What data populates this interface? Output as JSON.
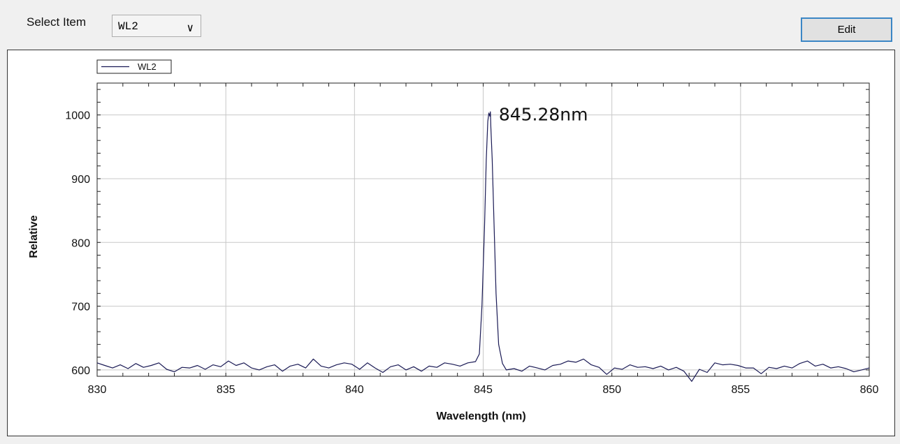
{
  "toolbar": {
    "select_label": "Select Item",
    "select_value": "WL2",
    "select_arrow": "∨",
    "edit_label": "Edit"
  },
  "colors": {
    "series": "#1a1a55",
    "grid": "#c8c8c8",
    "accent": "#3b86c5"
  },
  "chart_data": {
    "type": "line",
    "title": "",
    "xlabel": "Wavelength (nm)",
    "ylabel": "Relative",
    "xlim": [
      830,
      860
    ],
    "ylim": [
      590,
      1050
    ],
    "xticks": [
      830,
      835,
      840,
      845,
      850,
      855,
      860
    ],
    "yticks": [
      600,
      700,
      800,
      900,
      1000
    ],
    "grid": true,
    "legend": "top-left",
    "annotation": {
      "text": "845.28nm",
      "x": 845.28,
      "y": 1000
    },
    "series": [
      {
        "name": "WL2",
        "x": [
          830.0,
          830.3,
          830.6,
          830.9,
          831.2,
          831.5,
          831.8,
          832.1,
          832.4,
          832.7,
          833.0,
          833.3,
          833.6,
          833.9,
          834.2,
          834.5,
          834.8,
          835.1,
          835.4,
          835.7,
          836.0,
          836.3,
          836.6,
          836.9,
          837.2,
          837.5,
          837.8,
          838.1,
          838.4,
          838.7,
          839.0,
          839.3,
          839.6,
          839.9,
          840.2,
          840.5,
          840.8,
          841.1,
          841.4,
          841.7,
          842.0,
          842.3,
          842.6,
          842.9,
          843.2,
          843.5,
          843.8,
          844.1,
          844.4,
          844.7,
          844.85,
          844.95,
          845.05,
          845.12,
          845.18,
          845.22,
          845.26,
          845.28,
          845.3,
          845.35,
          845.42,
          845.5,
          845.6,
          845.75,
          845.9,
          846.2,
          846.5,
          846.8,
          847.1,
          847.4,
          847.7,
          848.0,
          848.3,
          848.6,
          848.9,
          849.2,
          849.5,
          849.8,
          850.1,
          850.4,
          850.7,
          851.0,
          851.3,
          851.6,
          851.9,
          852.2,
          852.5,
          852.8,
          853.1,
          853.4,
          853.7,
          854.0,
          854.3,
          854.6,
          854.9,
          855.2,
          855.5,
          855.8,
          856.1,
          856.4,
          856.7,
          857.0,
          857.3,
          857.6,
          857.9,
          858.2,
          858.5,
          858.8,
          859.1,
          859.4,
          859.7,
          860.0
        ],
        "values": [
          611,
          607,
          603,
          608,
          602,
          610,
          604,
          607,
          611,
          601,
          597,
          604,
          603,
          607,
          601,
          608,
          605,
          614,
          607,
          611,
          603,
          600,
          605,
          608,
          598,
          606,
          609,
          603,
          617,
          606,
          603,
          608,
          611,
          609,
          601,
          611,
          603,
          596,
          605,
          608,
          600,
          605,
          598,
          606,
          604,
          611,
          609,
          606,
          611,
          613,
          625,
          700,
          820,
          930,
          990,
          1003,
          998,
          1005,
          980,
          930,
          830,
          720,
          640,
          610,
          600,
          602,
          598,
          606,
          603,
          600,
          607,
          609,
          614,
          612,
          617,
          608,
          604,
          593,
          603,
          601,
          608,
          604,
          605,
          602,
          606,
          600,
          604,
          598,
          582,
          601,
          596,
          611,
          608,
          609,
          607,
          603,
          603,
          594,
          604,
          602,
          606,
          603,
          610,
          614,
          606,
          609,
          603,
          605,
          602,
          597,
          600,
          603
        ]
      }
    ]
  }
}
